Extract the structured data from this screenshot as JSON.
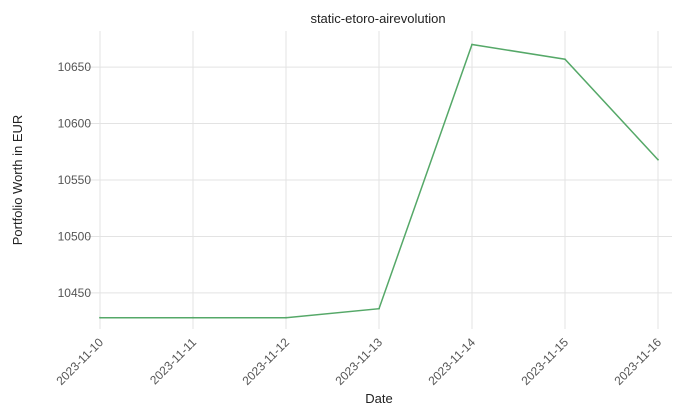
{
  "chart_data": {
    "type": "line",
    "title": "static-etoro-airevolution",
    "xlabel": "Date",
    "ylabel": "Portfolio Worth in EUR",
    "x": [
      "2023-11-10",
      "2023-11-11",
      "2023-11-12",
      "2023-11-13",
      "2023-11-14",
      "2023-11-15",
      "2023-11-16"
    ],
    "series": [
      {
        "values": [
          10428,
          10428,
          10428,
          10436,
          10670,
          10657,
          10568
        ],
        "color": "#55a868"
      }
    ],
    "yticks": [
      10450,
      10500,
      10550,
      10600,
      10650
    ],
    "ylim": [
      10418,
      10682
    ],
    "grid": true,
    "legend": "none"
  }
}
